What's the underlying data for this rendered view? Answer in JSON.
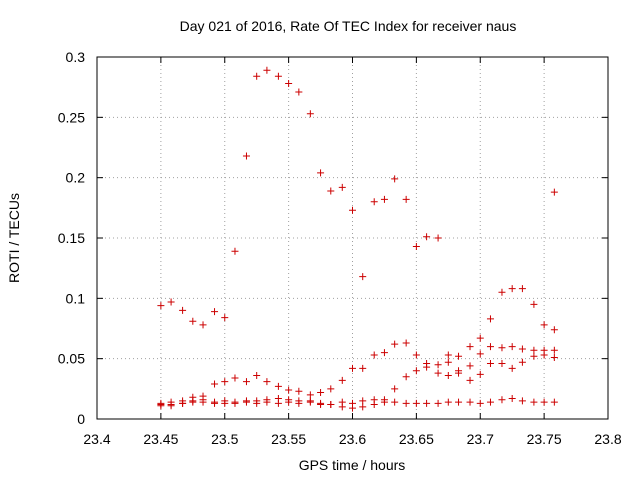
{
  "chart_data": {
    "type": "scatter",
    "title": "Day 021 of 2016, Rate Of TEC Index for receiver naus",
    "xlabel": "GPS time / hours",
    "ylabel": "ROTI / TECUs",
    "xlim": [
      23.4,
      23.8
    ],
    "ylim": [
      0,
      0.3
    ],
    "x_ticks": [
      23.4,
      23.45,
      23.5,
      23.55,
      23.6,
      23.65,
      23.7,
      23.75,
      23.8
    ],
    "x_tick_labels": [
      "23.4",
      "23.45",
      "23.5",
      "23.55",
      "23.6",
      "23.65",
      "23.7",
      "23.75",
      "23.8"
    ],
    "y_ticks": [
      0,
      0.05,
      0.1,
      0.15,
      0.2,
      0.25,
      0.3
    ],
    "y_tick_labels": [
      "0",
      "0.05",
      "0.1",
      "0.15",
      "0.2",
      "0.25",
      "0.3"
    ],
    "grid": true,
    "marker": "+",
    "marker_color": "#cc0000",
    "points": [
      [
        23.45,
        0.094
      ],
      [
        23.458,
        0.097
      ],
      [
        23.467,
        0.09
      ],
      [
        23.475,
        0.081
      ],
      [
        23.483,
        0.078
      ],
      [
        23.492,
        0.089
      ],
      [
        23.5,
        0.084
      ],
      [
        23.508,
        0.139
      ],
      [
        23.517,
        0.218
      ],
      [
        23.525,
        0.284
      ],
      [
        23.533,
        0.289
      ],
      [
        23.542,
        0.284
      ],
      [
        23.55,
        0.278
      ],
      [
        23.558,
        0.271
      ],
      [
        23.567,
        0.253
      ],
      [
        23.575,
        0.204
      ],
      [
        23.583,
        0.189
      ],
      [
        23.592,
        0.192
      ],
      [
        23.6,
        0.173
      ],
      [
        23.608,
        0.118
      ],
      [
        23.617,
        0.18
      ],
      [
        23.625,
        0.182
      ],
      [
        23.633,
        0.199
      ],
      [
        23.642,
        0.182
      ],
      [
        23.65,
        0.143
      ],
      [
        23.658,
        0.151
      ],
      [
        23.667,
        0.15
      ],
      [
        23.675,
        0.053
      ],
      [
        23.683,
        0.052
      ],
      [
        23.692,
        0.06
      ],
      [
        23.7,
        0.067
      ],
      [
        23.708,
        0.083
      ],
      [
        23.717,
        0.105
      ],
      [
        23.725,
        0.108
      ],
      [
        23.733,
        0.108
      ],
      [
        23.742,
        0.095
      ],
      [
        23.75,
        0.078
      ],
      [
        23.758,
        0.074
      ],
      [
        23.758,
        0.188
      ],
      [
        23.45,
        0.013
      ],
      [
        23.458,
        0.014
      ],
      [
        23.467,
        0.015
      ],
      [
        23.475,
        0.018
      ],
      [
        23.483,
        0.019
      ],
      [
        23.492,
        0.029
      ],
      [
        23.5,
        0.031
      ],
      [
        23.508,
        0.034
      ],
      [
        23.517,
        0.031
      ],
      [
        23.525,
        0.036
      ],
      [
        23.533,
        0.031
      ],
      [
        23.542,
        0.027
      ],
      [
        23.55,
        0.024
      ],
      [
        23.558,
        0.023
      ],
      [
        23.567,
        0.02
      ],
      [
        23.575,
        0.022
      ],
      [
        23.583,
        0.025
      ],
      [
        23.592,
        0.032
      ],
      [
        23.6,
        0.042
      ],
      [
        23.608,
        0.042
      ],
      [
        23.617,
        0.053
      ],
      [
        23.625,
        0.055
      ],
      [
        23.633,
        0.062
      ],
      [
        23.642,
        0.063
      ],
      [
        23.65,
        0.053
      ],
      [
        23.658,
        0.046
      ],
      [
        23.667,
        0.045
      ],
      [
        23.675,
        0.047
      ],
      [
        23.683,
        0.04
      ],
      [
        23.692,
        0.044
      ],
      [
        23.7,
        0.054
      ],
      [
        23.708,
        0.06
      ],
      [
        23.717,
        0.059
      ],
      [
        23.725,
        0.06
      ],
      [
        23.733,
        0.058
      ],
      [
        23.742,
        0.057
      ],
      [
        23.75,
        0.057
      ],
      [
        23.758,
        0.057
      ],
      [
        23.45,
        0.011
      ],
      [
        23.458,
        0.012
      ],
      [
        23.467,
        0.013
      ],
      [
        23.475,
        0.015
      ],
      [
        23.483,
        0.016
      ],
      [
        23.492,
        0.014
      ],
      [
        23.5,
        0.015
      ],
      [
        23.508,
        0.013
      ],
      [
        23.517,
        0.014
      ],
      [
        23.525,
        0.015
      ],
      [
        23.533,
        0.016
      ],
      [
        23.542,
        0.017
      ],
      [
        23.55,
        0.016
      ],
      [
        23.558,
        0.015
      ],
      [
        23.567,
        0.014
      ],
      [
        23.575,
        0.012
      ],
      [
        23.583,
        0.012
      ],
      [
        23.592,
        0.01
      ],
      [
        23.6,
        0.009
      ],
      [
        23.608,
        0.01
      ],
      [
        23.617,
        0.012
      ],
      [
        23.625,
        0.014
      ],
      [
        23.633,
        0.025
      ],
      [
        23.642,
        0.035
      ],
      [
        23.65,
        0.04
      ],
      [
        23.658,
        0.043
      ],
      [
        23.667,
        0.038
      ],
      [
        23.675,
        0.036
      ],
      [
        23.683,
        0.038
      ],
      [
        23.692,
        0.032
      ],
      [
        23.7,
        0.037
      ],
      [
        23.708,
        0.046
      ],
      [
        23.717,
        0.046
      ],
      [
        23.725,
        0.042
      ],
      [
        23.733,
        0.047
      ],
      [
        23.742,
        0.052
      ],
      [
        23.75,
        0.053
      ],
      [
        23.758,
        0.051
      ],
      [
        23.45,
        0.012
      ],
      [
        23.458,
        0.011
      ],
      [
        23.467,
        0.013
      ],
      [
        23.475,
        0.014
      ],
      [
        23.483,
        0.014
      ],
      [
        23.492,
        0.013
      ],
      [
        23.5,
        0.013
      ],
      [
        23.508,
        0.014
      ],
      [
        23.517,
        0.015
      ],
      [
        23.525,
        0.013
      ],
      [
        23.533,
        0.014
      ],
      [
        23.542,
        0.013
      ],
      [
        23.55,
        0.014
      ],
      [
        23.558,
        0.013
      ],
      [
        23.567,
        0.015
      ],
      [
        23.575,
        0.013
      ],
      [
        23.583,
        0.012
      ],
      [
        23.592,
        0.014
      ],
      [
        23.6,
        0.013
      ],
      [
        23.608,
        0.015
      ],
      [
        23.617,
        0.016
      ],
      [
        23.625,
        0.016
      ],
      [
        23.633,
        0.014
      ],
      [
        23.642,
        0.013
      ],
      [
        23.65,
        0.013
      ],
      [
        23.658,
        0.013
      ],
      [
        23.667,
        0.013
      ],
      [
        23.675,
        0.014
      ],
      [
        23.683,
        0.014
      ],
      [
        23.692,
        0.014
      ],
      [
        23.7,
        0.013
      ],
      [
        23.708,
        0.014
      ],
      [
        23.717,
        0.016
      ],
      [
        23.725,
        0.017
      ],
      [
        23.733,
        0.015
      ],
      [
        23.742,
        0.014
      ],
      [
        23.75,
        0.014
      ],
      [
        23.758,
        0.014
      ]
    ]
  }
}
